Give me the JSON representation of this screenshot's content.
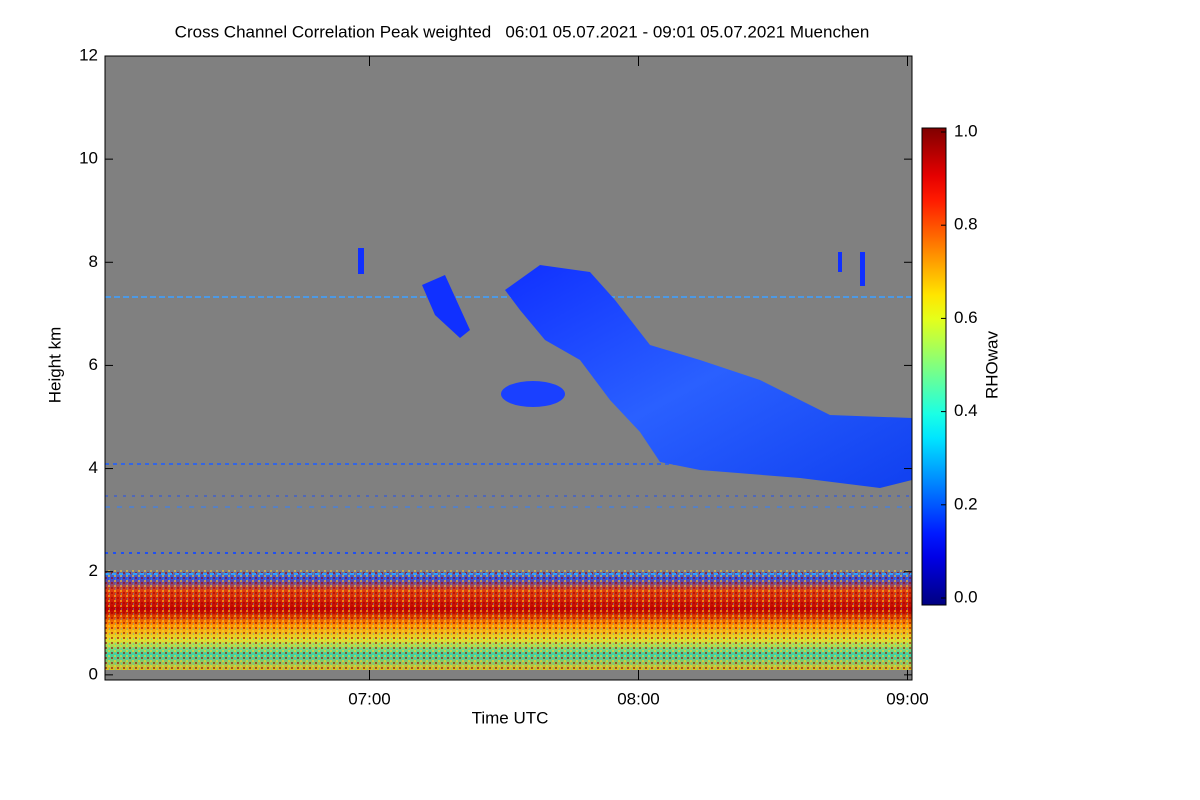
{
  "chart_data": {
    "type": "heatmap",
    "title": "Cross Channel Correlation Peak weighted   06:01 05.07.2021 - 09:01 05.07.2021 Muenchen",
    "xlabel": "Time UTC",
    "ylabel": "Height km",
    "xlim": [
      6.0167,
      9.0167
    ],
    "xticks": [
      {
        "value": 7,
        "label": "07:00"
      },
      {
        "value": 8,
        "label": "08:00"
      },
      {
        "value": 9,
        "label": "09:00"
      }
    ],
    "ylim": [
      -0.1,
      12
    ],
    "yticks": [
      0,
      2,
      4,
      6,
      8,
      10,
      12
    ],
    "background_color": "#808080",
    "colorbar": {
      "label": "RHOwav",
      "colormap": "jet",
      "clim": [
        0,
        1
      ],
      "ticks": [
        {
          "value": 0,
          "label": "0.0"
        },
        0.2,
        0.4,
        0.6,
        0.8,
        {
          "value": 1,
          "label": "1.0"
        }
      ]
    }
  }
}
